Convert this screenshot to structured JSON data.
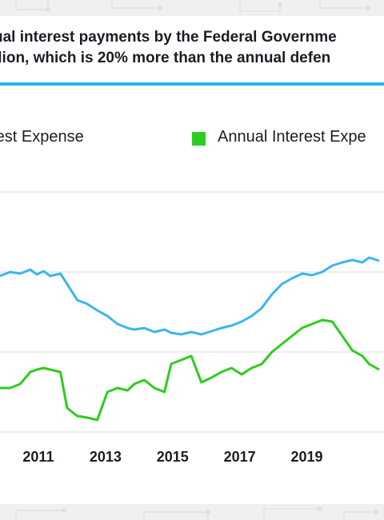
{
  "title": {
    "line1": "ual interest payments by the Federal Governme",
    "line2": "llion, which is 20% more than the annual defen"
  },
  "colors": {
    "accent_rule": "#22b8ea",
    "series_blue": "#3cb5ee",
    "series_green": "#2ecc1f",
    "grid": "#d9dcdf",
    "text": "#1a1d24"
  },
  "chart_data": {
    "type": "line",
    "xlabel": "",
    "ylabel": "",
    "x_ticks": [
      "2011",
      "2013",
      "2015",
      "2017",
      "2019"
    ],
    "xlim": [
      2010.0,
      2021.3
    ],
    "ylim": [
      0,
      4
    ],
    "grid": true,
    "legend_position": "top",
    "series": [
      {
        "name": "rest Expense",
        "color": "#3cb5ee",
        "x": [
          2010.0,
          2010.3,
          2010.6,
          2010.9,
          2011.1,
          2011.3,
          2011.5,
          2011.8,
          2012.0,
          2012.3,
          2012.6,
          2012.9,
          2013.2,
          2013.5,
          2013.8,
          2014.0,
          2014.3,
          2014.6,
          2014.9,
          2015.1,
          2015.4,
          2015.7,
          2016.0,
          2016.3,
          2016.6,
          2016.9,
          2017.2,
          2017.5,
          2017.8,
          2018.1,
          2018.4,
          2018.7,
          2019.0,
          2019.3,
          2019.6,
          2019.9,
          2020.2,
          2020.5,
          2020.8,
          2021.0,
          2021.3
        ],
        "values": [
          1.95,
          2.0,
          1.98,
          2.03,
          1.97,
          2.01,
          1.95,
          1.98,
          1.85,
          1.65,
          1.6,
          1.52,
          1.45,
          1.35,
          1.3,
          1.28,
          1.3,
          1.25,
          1.28,
          1.24,
          1.22,
          1.25,
          1.22,
          1.26,
          1.3,
          1.33,
          1.38,
          1.45,
          1.55,
          1.72,
          1.85,
          1.92,
          1.98,
          1.96,
          2.0,
          2.08,
          2.12,
          2.15,
          2.12,
          2.18,
          2.14
        ]
      },
      {
        "name": "Annual Interest Expe",
        "color": "#2ecc1f",
        "x": [
          2010.0,
          2010.3,
          2010.6,
          2010.9,
          2011.1,
          2011.3,
          2011.5,
          2011.8,
          2012.0,
          2012.3,
          2012.6,
          2012.9,
          2013.2,
          2013.5,
          2013.8,
          2014.0,
          2014.3,
          2014.6,
          2014.9,
          2015.1,
          2015.4,
          2015.7,
          2016.0,
          2016.3,
          2016.6,
          2016.9,
          2017.2,
          2017.5,
          2017.8,
          2018.1,
          2018.4,
          2018.7,
          2019.0,
          2019.3,
          2019.6,
          2019.9,
          2020.2,
          2020.5,
          2020.8,
          2021.0,
          2021.3
        ],
        "values": [
          0.55,
          0.55,
          0.6,
          0.75,
          0.78,
          0.8,
          0.78,
          0.75,
          0.3,
          0.2,
          0.18,
          0.15,
          0.5,
          0.55,
          0.52,
          0.6,
          0.65,
          0.55,
          0.5,
          0.85,
          0.9,
          0.95,
          0.62,
          0.68,
          0.75,
          0.8,
          0.72,
          0.8,
          0.85,
          1.0,
          1.1,
          1.2,
          1.3,
          1.35,
          1.4,
          1.38,
          1.2,
          1.02,
          0.95,
          0.85,
          0.78
        ]
      }
    ]
  }
}
